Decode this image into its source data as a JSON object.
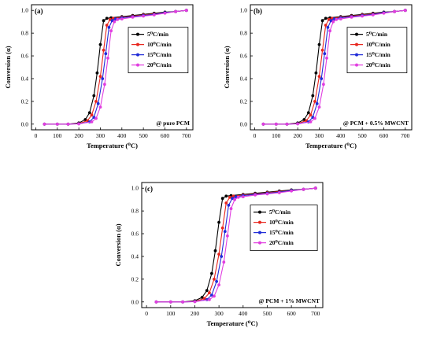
{
  "legend_labels": [
    "5⁰C/min",
    "10⁰C/min",
    "15⁰C/min",
    "20⁰C/min"
  ],
  "colors": [
    "#000000",
    "#e8261e",
    "#1f2bd8",
    "#e13ee0"
  ],
  "axis": {
    "xlabel": "Temperature (⁰C)",
    "ylabel": "Conversion (α)",
    "x_ticks": [
      0,
      100,
      200,
      300,
      400,
      500,
      600,
      700
    ],
    "y_ticks": [
      0.0,
      0.2,
      0.4,
      0.6,
      0.8,
      1.0
    ],
    "y_tick_labels": [
      "0.0",
      "0.2",
      "0.4",
      "0.6",
      "0.8",
      "1.0"
    ]
  },
  "chart_data": [
    {
      "type": "line",
      "panel_label": "(a)",
      "annotation": "@ pure PCM",
      "xlabel": "Temperature (⁰C)",
      "ylabel": "Conversion (α)",
      "xlim": [
        -20,
        730
      ],
      "ylim": [
        -0.05,
        1.05
      ],
      "legend_position": "right",
      "series": [
        {
          "name": "5⁰C/min",
          "x": [
            40,
            100,
            150,
            200,
            230,
            250,
            270,
            285,
            300,
            315,
            330,
            350,
            400,
            450,
            500,
            550,
            600,
            650,
            700
          ],
          "y": [
            0,
            0,
            0,
            0.01,
            0.04,
            0.1,
            0.25,
            0.45,
            0.7,
            0.91,
            0.93,
            0.935,
            0.945,
            0.955,
            0.965,
            0.975,
            0.985,
            0.99,
            1.0
          ]
        },
        {
          "name": "10⁰C/min",
          "x": [
            40,
            100,
            150,
            200,
            240,
            260,
            280,
            300,
            315,
            330,
            345,
            360,
            400,
            450,
            500,
            550,
            600,
            650,
            700
          ],
          "y": [
            0,
            0,
            0,
            0.005,
            0.03,
            0.08,
            0.2,
            0.42,
            0.65,
            0.87,
            0.92,
            0.93,
            0.94,
            0.95,
            0.96,
            0.97,
            0.98,
            0.99,
            1.0
          ]
        },
        {
          "name": "15⁰C/min",
          "x": [
            40,
            100,
            150,
            200,
            250,
            270,
            290,
            310,
            325,
            340,
            355,
            370,
            400,
            450,
            500,
            550,
            600,
            650,
            700
          ],
          "y": [
            0,
            0,
            0,
            0.003,
            0.02,
            0.06,
            0.18,
            0.4,
            0.62,
            0.85,
            0.91,
            0.925,
            0.935,
            0.945,
            0.955,
            0.965,
            0.98,
            0.99,
            1.0
          ]
        },
        {
          "name": "20⁰C/min",
          "x": [
            40,
            100,
            150,
            200,
            260,
            280,
            300,
            320,
            335,
            350,
            365,
            380,
            400,
            450,
            500,
            550,
            600,
            650,
            700
          ],
          "y": [
            0,
            0,
            0,
            0.002,
            0.02,
            0.05,
            0.15,
            0.35,
            0.58,
            0.82,
            0.9,
            0.92,
            0.925,
            0.94,
            0.95,
            0.96,
            0.975,
            0.99,
            1.0
          ]
        }
      ]
    },
    {
      "type": "line",
      "panel_label": "(b)",
      "annotation": "@ PCM + 0.5% MWCNT",
      "xlabel": "Temperature (⁰C)",
      "ylabel": "Conversion (α)",
      "xlim": [
        -20,
        730
      ],
      "ylim": [
        -0.05,
        1.05
      ],
      "legend_position": "right",
      "series": [
        {
          "name": "5⁰C/min",
          "x": [
            40,
            100,
            150,
            200,
            230,
            250,
            270,
            285,
            300,
            315,
            330,
            350,
            400,
            450,
            500,
            550,
            600,
            650,
            700
          ],
          "y": [
            0,
            0,
            0,
            0.01,
            0.04,
            0.1,
            0.25,
            0.45,
            0.7,
            0.91,
            0.93,
            0.935,
            0.945,
            0.955,
            0.965,
            0.975,
            0.985,
            0.99,
            1.0
          ]
        },
        {
          "name": "10⁰C/min",
          "x": [
            40,
            100,
            150,
            200,
            240,
            260,
            280,
            300,
            315,
            330,
            345,
            360,
            400,
            450,
            500,
            550,
            600,
            650,
            700
          ],
          "y": [
            0,
            0,
            0,
            0.005,
            0.03,
            0.08,
            0.2,
            0.42,
            0.65,
            0.87,
            0.92,
            0.93,
            0.94,
            0.95,
            0.96,
            0.97,
            0.98,
            0.99,
            1.0
          ]
        },
        {
          "name": "15⁰C/min",
          "x": [
            40,
            100,
            150,
            200,
            250,
            270,
            290,
            310,
            325,
            340,
            355,
            370,
            400,
            450,
            500,
            550,
            600,
            650,
            700
          ],
          "y": [
            0,
            0,
            0,
            0.003,
            0.02,
            0.06,
            0.18,
            0.4,
            0.62,
            0.85,
            0.91,
            0.925,
            0.935,
            0.945,
            0.955,
            0.965,
            0.98,
            0.99,
            1.0
          ]
        },
        {
          "name": "20⁰C/min",
          "x": [
            40,
            100,
            150,
            200,
            260,
            280,
            300,
            320,
            335,
            350,
            365,
            380,
            400,
            450,
            500,
            550,
            600,
            650,
            700
          ],
          "y": [
            0,
            0,
            0,
            0.002,
            0.02,
            0.05,
            0.15,
            0.35,
            0.58,
            0.82,
            0.9,
            0.92,
            0.925,
            0.94,
            0.95,
            0.96,
            0.975,
            0.99,
            1.0
          ]
        }
      ]
    },
    {
      "type": "line",
      "panel_label": "(c)",
      "annotation": "@ PCM + 1% MWCNT",
      "xlabel": "Temperature (⁰C)",
      "ylabel": "Conversion (α)",
      "xlim": [
        -20,
        730
      ],
      "ylim": [
        -0.05,
        1.05
      ],
      "legend_position": "right",
      "series": [
        {
          "name": "5⁰C/min",
          "x": [
            40,
            100,
            150,
            200,
            230,
            250,
            270,
            285,
            300,
            315,
            330,
            350,
            400,
            450,
            500,
            550,
            600,
            650,
            700
          ],
          "y": [
            0,
            0,
            0,
            0.01,
            0.04,
            0.1,
            0.25,
            0.45,
            0.7,
            0.91,
            0.93,
            0.935,
            0.945,
            0.955,
            0.965,
            0.975,
            0.985,
            0.99,
            1.0
          ]
        },
        {
          "name": "10⁰C/min",
          "x": [
            40,
            100,
            150,
            200,
            240,
            260,
            280,
            300,
            315,
            330,
            345,
            360,
            400,
            450,
            500,
            550,
            600,
            650,
            700
          ],
          "y": [
            0,
            0,
            0,
            0.005,
            0.03,
            0.08,
            0.2,
            0.42,
            0.65,
            0.87,
            0.92,
            0.93,
            0.94,
            0.95,
            0.96,
            0.97,
            0.98,
            0.99,
            1.0
          ]
        },
        {
          "name": "15⁰C/min",
          "x": [
            40,
            100,
            150,
            200,
            250,
            270,
            290,
            310,
            325,
            340,
            355,
            370,
            400,
            450,
            500,
            550,
            600,
            650,
            700
          ],
          "y": [
            0,
            0,
            0,
            0.003,
            0.02,
            0.06,
            0.18,
            0.4,
            0.62,
            0.85,
            0.91,
            0.925,
            0.935,
            0.945,
            0.955,
            0.965,
            0.98,
            0.99,
            1.0
          ]
        },
        {
          "name": "20⁰C/min",
          "x": [
            40,
            100,
            150,
            200,
            260,
            280,
            300,
            320,
            335,
            350,
            365,
            380,
            400,
            450,
            500,
            550,
            600,
            650,
            700
          ],
          "y": [
            0,
            0,
            0,
            0.002,
            0.02,
            0.05,
            0.15,
            0.35,
            0.58,
            0.82,
            0.9,
            0.92,
            0.925,
            0.94,
            0.95,
            0.96,
            0.975,
            0.99,
            1.0
          ]
        }
      ]
    }
  ]
}
